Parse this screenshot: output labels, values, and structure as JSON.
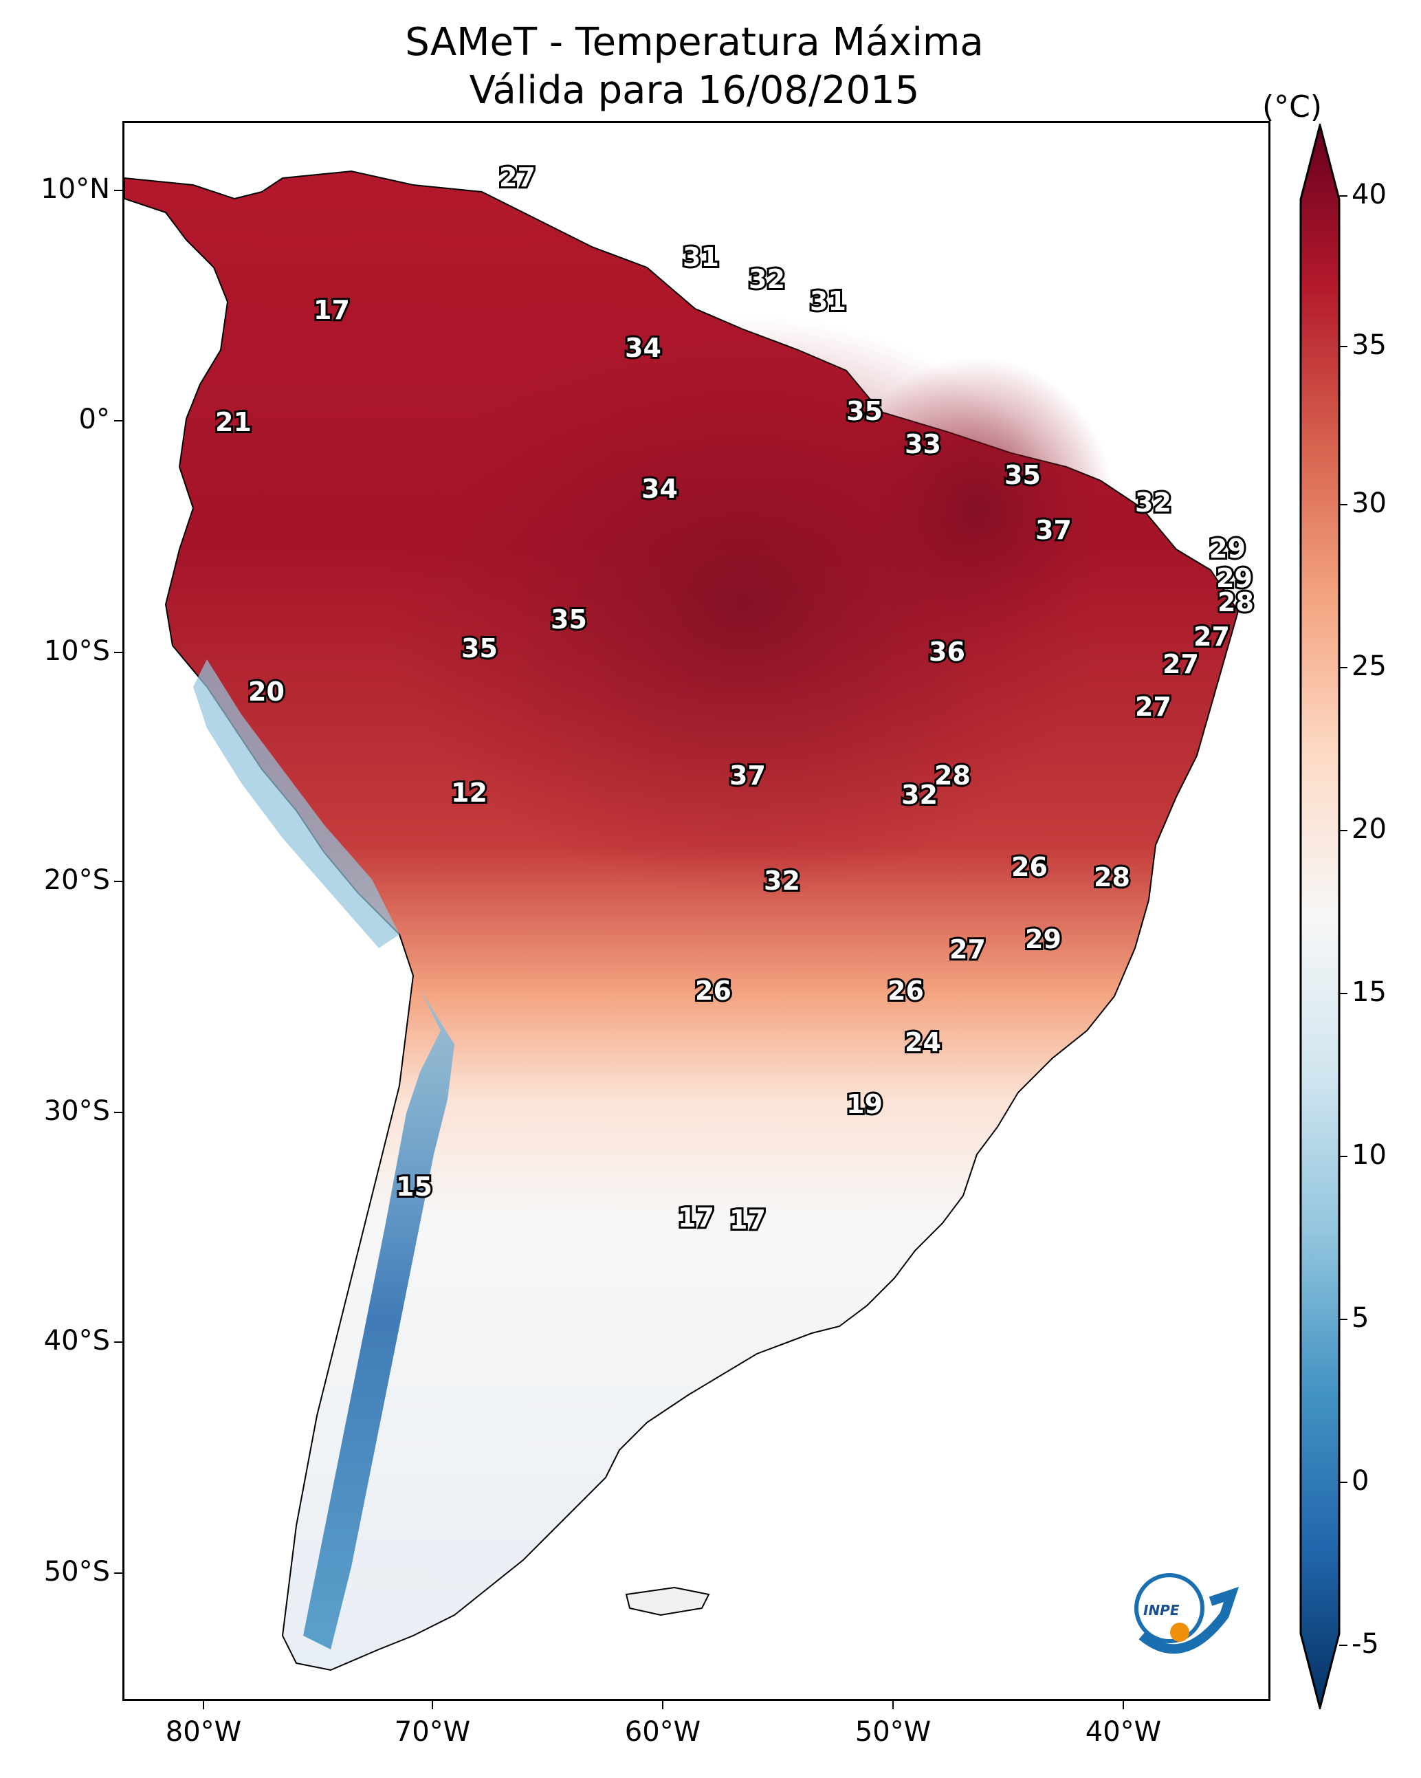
{
  "title": {
    "line1": "SAMeT - Temperatura Máxima",
    "line2": "Válida para 16/08/2015"
  },
  "axes": {
    "lat_labels": [
      "10°N",
      "0°",
      "10°S",
      "20°S",
      "30°S",
      "40°S",
      "50°S"
    ],
    "lon_labels": [
      "80°W",
      "70°W",
      "60°W",
      "50°W",
      "40°W"
    ]
  },
  "colorbar": {
    "unit": "(°C)",
    "ticks": [
      "40",
      "35",
      "30",
      "25",
      "20",
      "15",
      "10",
      "5",
      "0",
      "-5"
    ],
    "range": [
      -5,
      40
    ],
    "colors": [
      "#053061",
      "#2166ac",
      "#4393c3",
      "#92c5de",
      "#d1e5f0",
      "#f7f7f7",
      "#fddbc7",
      "#f4a582",
      "#d6604d",
      "#b2182b",
      "#67001f"
    ]
  },
  "contour_labels": [
    "27",
    "31",
    "32",
    "31",
    "17",
    "34",
    "21",
    "35",
    "33",
    "35",
    "34",
    "32",
    "37",
    "29",
    "29",
    "28",
    "35",
    "35",
    "27",
    "36",
    "27",
    "20",
    "27",
    "12",
    "37",
    "28",
    "32",
    "26",
    "28",
    "32",
    "29",
    "27",
    "26",
    "26",
    "24",
    "19",
    "15",
    "17",
    "17"
  ],
  "logo": {
    "text": "INPE",
    "icon": "inpe-logo-icon"
  }
}
